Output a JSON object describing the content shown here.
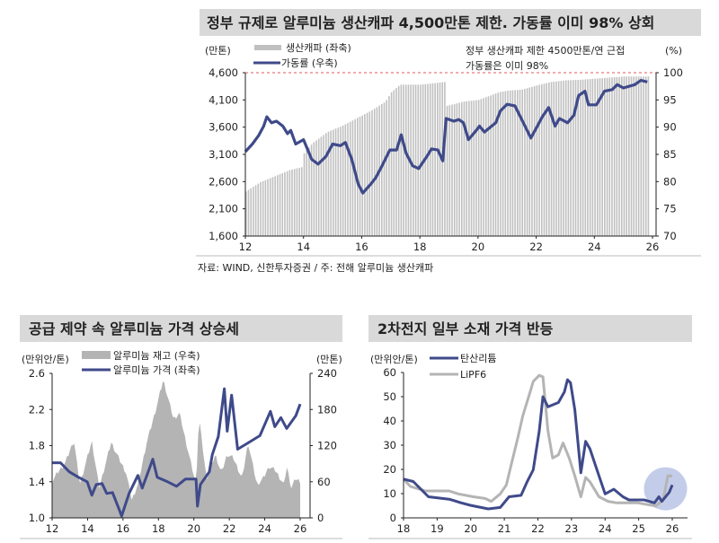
{
  "chart_data": [
    {
      "type": "bar+line",
      "title": "정부 규제로 알루미늄 생산캐파 4,500만톤 제한. 가동률 이미 98% 상회",
      "y_left_unit": "(만톤)",
      "y_right_unit": "(%)",
      "annotation": [
        "정부 생산캐파 제한 4500만톤/연 근접",
        "가동률은 이미 98%"
      ],
      "source": "자료: WIND, 신한투자증권 / 주: 전해 알루미늄 생산캐파",
      "xlim": [
        12,
        26
      ],
      "x_ticks": [
        "12",
        "14",
        "16",
        "18",
        "20",
        "22",
        "24",
        "26"
      ],
      "y_left_lim": [
        1600,
        4600
      ],
      "y_left_ticks": [
        "4,600",
        "4,100",
        "3,600",
        "3,100",
        "2,600",
        "2,100",
        "1,600"
      ],
      "y_right_lim": [
        70,
        100
      ],
      "y_right_ticks": [
        "100",
        "95",
        "90",
        "85",
        "80",
        "75",
        "70"
      ],
      "reference_line": {
        "axis": "right",
        "value": 100,
        "color": "#e05a5a",
        "style": "dashed"
      },
      "series": [
        {
          "name": "생산캐파 (좌축)",
          "type": "bar",
          "axis": "left",
          "color": "#c0c0c0",
          "x": [
            12.0,
            12.5,
            13.0,
            13.5,
            13.95,
            14.0,
            14.3,
            14.8,
            15.3,
            15.8,
            16.3,
            16.8,
            17.0,
            17.3,
            18.0,
            18.85,
            18.9,
            19.5,
            20.0,
            20.7,
            21.0,
            21.5,
            22.1,
            22.5,
            23.0,
            23.5,
            24.0,
            25.0,
            25.9
          ],
          "y": [
            2420,
            2590,
            2700,
            2810,
            2870,
            3120,
            3310,
            3510,
            3620,
            3760,
            3900,
            4070,
            4240,
            4380,
            4380,
            4430,
            3990,
            4070,
            4100,
            4240,
            4270,
            4290,
            4380,
            4430,
            4460,
            4470,
            4490,
            4530,
            4530
          ]
        },
        {
          "name": "가동률 (우축)",
          "type": "line",
          "axis": "right",
          "color": "#3f4a8a",
          "x": [
            12.0,
            12.24,
            12.46,
            12.63,
            12.74,
            12.9,
            13.07,
            13.29,
            13.45,
            13.56,
            13.73,
            14.0,
            14.28,
            14.5,
            14.77,
            15.0,
            15.27,
            15.44,
            15.66,
            15.88,
            16.04,
            16.32,
            16.48,
            16.7,
            16.97,
            17.2,
            17.36,
            17.53,
            17.75,
            17.96,
            18.24,
            18.4,
            18.62,
            18.79,
            18.9,
            19.17,
            19.34,
            19.5,
            19.67,
            19.94,
            20.05,
            20.22,
            20.61,
            20.77,
            21.0,
            21.27,
            21.82,
            22.04,
            22.21,
            22.43,
            22.65,
            22.8,
            23.08,
            23.3,
            23.46,
            23.68,
            23.8,
            24.07,
            24.35,
            24.62,
            24.79,
            25.0,
            25.39,
            25.6,
            25.82
          ],
          "y": [
            85.5,
            86.9,
            88.5,
            90.2,
            91.9,
            90.8,
            91.1,
            90.2,
            88.8,
            89.4,
            86.9,
            87.7,
            84.1,
            83.2,
            84.6,
            86.9,
            86.6,
            87.2,
            84.1,
            79.6,
            77.9,
            79.6,
            80.7,
            82.9,
            85.8,
            85.8,
            88.6,
            85.2,
            82.9,
            82.4,
            84.6,
            86.0,
            85.8,
            83.8,
            91.6,
            91.1,
            91.4,
            90.8,
            87.7,
            89.4,
            90.2,
            89.1,
            90.8,
            93.0,
            94.2,
            93.9,
            88.0,
            90.2,
            91.9,
            93.6,
            90.2,
            91.6,
            90.8,
            92.2,
            95.8,
            96.6,
            94.1,
            94.1,
            96.6,
            96.9,
            97.8,
            97.2,
            97.8,
            98.6,
            98.3
          ]
        }
      ]
    },
    {
      "type": "area+line",
      "title": "공급 제약 속 알루미늄 가격 상승세",
      "y_left_unit": "(만위안/톤)",
      "y_right_unit": "(만톤)",
      "xlim": [
        12,
        26
      ],
      "x_ticks": [
        "12",
        "14",
        "16",
        "18",
        "20",
        "22",
        "24",
        "26"
      ],
      "y_left_lim": [
        1.0,
        2.6
      ],
      "y_left_ticks": [
        "2.6",
        "2.2",
        "1.8",
        "1.4",
        "1.0"
      ],
      "y_right_lim": [
        0,
        240
      ],
      "y_right_ticks": [
        "240",
        "180",
        "120",
        "60",
        "0"
      ],
      "series": [
        {
          "name": "알루미늄 재고 (우축)",
          "type": "area",
          "axis": "right",
          "color": "#b4b4b4",
          "x": [
            12.0,
            12.3,
            12.72,
            13.23,
            13.56,
            14.24,
            14.66,
            15.33,
            15.83,
            16.17,
            16.5,
            16.84,
            17.34,
            17.85,
            18.27,
            18.86,
            19.19,
            19.53,
            20.12,
            20.29,
            20.71,
            21.21,
            21.55,
            21.88,
            22.22,
            22.72,
            23.06,
            23.56,
            23.9,
            24.24,
            24.57,
            25.08,
            25.24,
            25.5,
            25.75,
            26.0
          ],
          "y": [
            60,
            75,
            90,
            129,
            55,
            127,
            50,
            125,
            95,
            75,
            30,
            55,
            125,
            179,
            229,
            164,
            174,
            129,
            55,
            167,
            65,
            105,
            75,
            105,
            100,
            65,
            125,
            55,
            65,
            85,
            80,
            55,
            85,
            50,
            65,
            60
          ]
        },
        {
          "name": "알루미늄 가격 (좌축)",
          "type": "line",
          "axis": "left",
          "color": "#3f4a8a",
          "x": [
            12.0,
            12.47,
            12.97,
            13.48,
            13.98,
            14.24,
            14.49,
            14.82,
            15.08,
            15.41,
            15.83,
            15.92,
            16.34,
            16.84,
            17.09,
            17.68,
            17.93,
            18.52,
            19.02,
            19.53,
            20.12,
            20.2,
            20.37,
            20.87,
            21.04,
            21.38,
            21.72,
            21.88,
            22.13,
            22.47,
            23.06,
            23.73,
            24.32,
            24.57,
            24.91,
            25.24,
            25.75,
            26.0
          ],
          "y": [
            1.61,
            1.61,
            1.51,
            1.45,
            1.4,
            1.25,
            1.37,
            1.38,
            1.27,
            1.28,
            1.07,
            1.02,
            1.27,
            1.47,
            1.33,
            1.65,
            1.45,
            1.4,
            1.35,
            1.43,
            1.43,
            1.13,
            1.37,
            1.51,
            1.7,
            1.9,
            2.43,
            1.96,
            2.36,
            1.76,
            1.83,
            1.91,
            2.18,
            2.01,
            2.11,
            1.99,
            2.13,
            2.26
          ]
        }
      ]
    },
    {
      "type": "line",
      "title": "2차전지 일부 소재 가격 반등",
      "y_unit": "(만위안/톤)",
      "xlim": [
        18,
        26
      ],
      "x_ticks": [
        "18",
        "19",
        "20",
        "21",
        "22",
        "23",
        "24",
        "25",
        "26"
      ],
      "ylim": [
        0,
        60
      ],
      "y_ticks": [
        "60",
        "50",
        "40",
        "30",
        "20",
        "10",
        "0"
      ],
      "highlight": {
        "shape": "circle",
        "x": 25.8,
        "y": 12,
        "color": "#b8c4e6"
      },
      "series": [
        {
          "name": "탄산리튬",
          "color": "#3f4a8a",
          "x": [
            18.0,
            18.29,
            18.74,
            19.36,
            19.72,
            19.99,
            20.52,
            20.88,
            21.14,
            21.5,
            21.68,
            21.86,
            22.04,
            22.15,
            22.3,
            22.61,
            22.79,
            22.88,
            22.97,
            23.1,
            23.28,
            23.42,
            23.55,
            23.82,
            24.0,
            24.26,
            24.53,
            24.71,
            25.16,
            25.47,
            25.6,
            25.69,
            25.91,
            26.0
          ],
          "y": [
            16,
            15,
            8.7,
            7.7,
            6.2,
            5.2,
            3.7,
            4.3,
            8.7,
            9.3,
            14.9,
            19.8,
            35.9,
            50,
            45.8,
            47.6,
            52,
            57,
            55.7,
            44.6,
            18.6,
            31.6,
            28.5,
            17.3,
            9.9,
            11.8,
            8.7,
            7.4,
            7.4,
            6.2,
            8.7,
            6.8,
            10.5,
            13.6
          ]
        },
        {
          "name": "LiPF6",
          "color": "#b4b4b4",
          "x": [
            18.0,
            18.2,
            18.65,
            19.36,
            19.63,
            20.08,
            20.43,
            20.61,
            20.88,
            21.06,
            21.19,
            21.41,
            21.55,
            21.77,
            21.86,
            22.04,
            22.15,
            22.3,
            22.44,
            22.61,
            22.75,
            22.93,
            23.1,
            23.28,
            23.42,
            23.55,
            23.82,
            24.09,
            24.35,
            24.98,
            25.51,
            25.73,
            25.87,
            26.0
          ],
          "y": [
            16,
            13,
            11.1,
            11.1,
            9.9,
            8.7,
            8.0,
            6.8,
            9.9,
            13.6,
            21.0,
            33.4,
            42.1,
            52,
            56.3,
            58.8,
            58.2,
            35.9,
            24.7,
            26,
            30.9,
            24.7,
            17.3,
            8.7,
            16.7,
            14.9,
            8.7,
            6.8,
            6.2,
            6.2,
            4.9,
            7.4,
            17.3,
            17.3
          ]
        }
      ]
    }
  ]
}
